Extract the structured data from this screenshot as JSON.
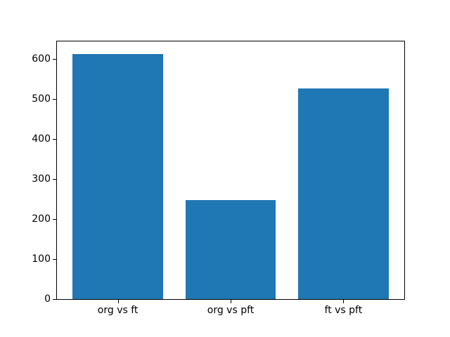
{
  "chart_data": {
    "type": "bar",
    "categories": [
      "org vs ft",
      "org vs pft",
      "ft vs pft"
    ],
    "values": [
      613,
      247,
      526
    ],
    "title": "",
    "xlabel": "",
    "ylabel": "",
    "yticks": [
      0,
      100,
      200,
      300,
      400,
      500,
      600
    ],
    "ylim": [
      0,
      644
    ],
    "xlim": [
      -0.54,
      2.54
    ],
    "bar_width": 0.8,
    "bar_color": "#1f77b4",
    "background_color": "#ffffff",
    "spine_color": "#000000",
    "tick_color": "#000000",
    "grid": false,
    "legend": false
  }
}
